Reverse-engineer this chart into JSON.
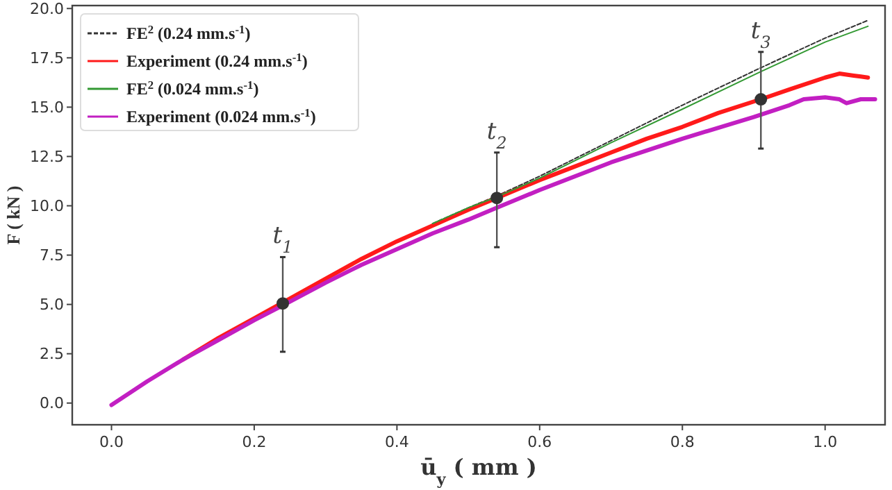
{
  "chart_data": {
    "type": "line",
    "xlabel": "ū$_{y}$ ( mm )",
    "ylabel": "F ( kN )",
    "xlim": [
      -0.055,
      1.084
    ],
    "ylim": [
      -1.1,
      20.15
    ],
    "xticks": [
      {
        "value": 0,
        "label": "0.0"
      },
      0.2,
      0.4,
      0.6,
      0.8,
      {
        "value": 1,
        "label": "1.0"
      }
    ],
    "yticks": [
      {
        "value": 0,
        "label": "0.0"
      },
      2.5,
      {
        "value": 5,
        "label": "5.0"
      },
      7.5,
      {
        "value": 10,
        "label": "10.0"
      },
      12.5,
      {
        "value": 15,
        "label": "15.0"
      },
      17.5,
      {
        "value": 20,
        "label": "20.0"
      }
    ],
    "grid": false,
    "legend": "top left",
    "series": [
      {
        "name": "FE$^{2}$ (0.24 mm.s$^{-1}$)",
        "color": "#333333",
        "line_style": "dashed",
        "x": [
          0.45,
          0.5,
          0.54,
          0.6,
          0.7,
          0.8,
          0.91,
          1.0,
          1.06
        ],
        "values": [
          9.1,
          9.9,
          10.5,
          11.5,
          13.3,
          15.1,
          17.0,
          18.5,
          19.4
        ]
      },
      {
        "name": "Experiment (0.24 mm.s$^{-1}$)",
        "color": "#ff1a1a",
        "line_style": "solid",
        "x": [
          0.1,
          0.15,
          0.2,
          0.24,
          0.3,
          0.35,
          0.4,
          0.45,
          0.5,
          0.54,
          0.6,
          0.65,
          0.7,
          0.75,
          0.8,
          0.85,
          0.91,
          0.95,
          1.0,
          1.02,
          1.04,
          1.05,
          1.06
        ],
        "values": [
          2.2,
          3.3,
          4.3,
          5.1,
          6.3,
          7.3,
          8.2,
          9.0,
          9.8,
          10.4,
          11.3,
          12.0,
          12.7,
          13.4,
          14.0,
          14.7,
          15.4,
          15.9,
          16.5,
          16.7,
          16.6,
          16.55,
          16.5
        ]
      },
      {
        "name": "FE$^{2}$ (0.024 mm.s$^{-1}$)",
        "color": "#339933",
        "line_style": "solid",
        "x": [
          0.45,
          0.5,
          0.54,
          0.6,
          0.7,
          0.8,
          0.91,
          1.0,
          1.06
        ],
        "values": [
          9.1,
          9.9,
          10.45,
          11.4,
          13.2,
          14.9,
          16.8,
          18.3,
          19.1
        ]
      },
      {
        "name": "Experiment (0.024 mm.s$^{-1}$)",
        "color": "#c21fc2",
        "line_style": "solid",
        "x": [
          0,
          0.05,
          0.1,
          0.15,
          0.2,
          0.24,
          0.3,
          0.35,
          0.4,
          0.45,
          0.5,
          0.54,
          0.6,
          0.7,
          0.8,
          0.9,
          0.95,
          0.97,
          1.0,
          1.02,
          1.03,
          1.05,
          1.07
        ],
        "values": [
          -0.1,
          1.1,
          2.2,
          3.2,
          4.2,
          4.95,
          6.1,
          7.0,
          7.8,
          8.6,
          9.3,
          9.9,
          10.8,
          12.2,
          13.4,
          14.5,
          15.1,
          15.4,
          15.5,
          15.4,
          15.2,
          15.4,
          15.4
        ]
      },
      {
        "type": "scatter",
        "color": "#333333",
        "marker": "circle",
        "x": [
          0.24,
          0.54,
          0.91
        ],
        "values": [
          5.05,
          10.4,
          15.4
        ],
        "errors": [
          [
            2.6,
            7.4
          ],
          [
            7.9,
            12.7
          ],
          [
            12.9,
            17.8
          ]
        ]
      }
    ],
    "annotations": [
      {
        "text": "t$_{1}$",
        "x": 0.24,
        "y": 7.4
      },
      {
        "text": "t$_{2}$",
        "x": 0.54,
        "y": 12.7
      },
      {
        "text": "t$_{3}$",
        "x": 0.91,
        "y": 17.8
      }
    ]
  }
}
